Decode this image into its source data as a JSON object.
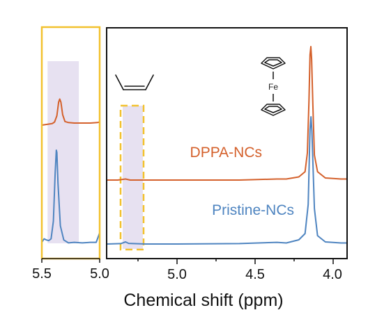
{
  "chart_data": [
    {
      "type": "line",
      "panel": "inset-zoom",
      "xlim": [
        5.5,
        5.0
      ],
      "x_reversed": true,
      "x_ticks": [
        "5.5",
        "5.0"
      ],
      "highlight_band": [
        5.45,
        5.18
      ],
      "series": [
        {
          "name": "DPPA-NCs",
          "color": "#d4602b",
          "points": [
            [
              5.5,
              0.64
            ],
            [
              5.47,
              0.645
            ],
            [
              5.44,
              0.65
            ],
            [
              5.41,
              0.655
            ],
            [
              5.39,
              0.67
            ],
            [
              5.37,
              0.73
            ],
            [
              5.355,
              0.86
            ],
            [
              5.345,
              0.89
            ],
            [
              5.335,
              0.86
            ],
            [
              5.32,
              0.74
            ],
            [
              5.3,
              0.675
            ],
            [
              5.27,
              0.665
            ],
            [
              5.22,
              0.66
            ],
            [
              5.15,
              0.66
            ],
            [
              5.08,
              0.66
            ],
            [
              5.02,
              0.665
            ],
            [
              5.0,
              0.67
            ]
          ]
        },
        {
          "name": "Pristine-NCs",
          "color": "#4e84c0",
          "points": [
            [
              5.5,
              0.02
            ],
            [
              5.48,
              0.05
            ],
            [
              5.46,
              0.04
            ],
            [
              5.44,
              0.035
            ],
            [
              5.42,
              0.05
            ],
            [
              5.4,
              0.2
            ],
            [
              5.385,
              0.6
            ],
            [
              5.375,
              0.8
            ],
            [
              5.37,
              0.78
            ],
            [
              5.36,
              0.52
            ],
            [
              5.34,
              0.16
            ],
            [
              5.31,
              0.04
            ],
            [
              5.27,
              0.015
            ],
            [
              5.22,
              0.02
            ],
            [
              5.15,
              0.015
            ],
            [
              5.08,
              0.02
            ],
            [
              5.03,
              0.02
            ],
            [
              5.0,
              0.1
            ]
          ]
        }
      ]
    },
    {
      "type": "line",
      "panel": "main",
      "xlabel": "Chemical shift (ppm)",
      "xlim": [
        5.45,
        3.9
      ],
      "x_reversed": true,
      "x_ticks": [
        "5.0",
        "4.5",
        "4.0"
      ],
      "highlight_band": [
        5.38,
        5.25
      ],
      "series": [
        {
          "name": "DPPA-NCs",
          "color": "#d4602b",
          "points": [
            [
              5.45,
              0.32
            ],
            [
              5.38,
              0.32
            ],
            [
              5.33,
              0.325
            ],
            [
              5.3,
              0.32
            ],
            [
              5.0,
              0.32
            ],
            [
              4.6,
              0.32
            ],
            [
              4.36,
              0.325
            ],
            [
              4.3,
              0.325
            ],
            [
              4.22,
              0.335
            ],
            [
              4.18,
              0.36
            ],
            [
              4.165,
              0.45
            ],
            [
              4.155,
              0.7
            ],
            [
              4.148,
              0.92
            ],
            [
              4.143,
              0.96
            ],
            [
              4.138,
              0.9
            ],
            [
              4.13,
              0.68
            ],
            [
              4.12,
              0.44
            ],
            [
              4.1,
              0.36
            ],
            [
              4.05,
              0.33
            ],
            [
              3.95,
              0.325
            ],
            [
              3.9,
              0.325
            ]
          ]
        },
        {
          "name": "Pristine-NCs",
          "color": "#4e84c0",
          "points": [
            [
              5.45,
              0.01
            ],
            [
              5.36,
              0.012
            ],
            [
              5.33,
              0.02
            ],
            [
              5.31,
              0.013
            ],
            [
              5.2,
              0.01
            ],
            [
              5.0,
              0.01
            ],
            [
              4.6,
              0.012
            ],
            [
              4.36,
              0.018
            ],
            [
              4.3,
              0.015
            ],
            [
              4.22,
              0.03
            ],
            [
              4.18,
              0.06
            ],
            [
              4.16,
              0.2
            ],
            [
              4.148,
              0.56
            ],
            [
              4.142,
              0.62
            ],
            [
              4.136,
              0.55
            ],
            [
              4.12,
              0.18
            ],
            [
              4.1,
              0.05
            ],
            [
              4.05,
              0.02
            ],
            [
              3.95,
              0.015
            ],
            [
              3.9,
              0.015
            ]
          ]
        }
      ]
    }
  ],
  "labels": {
    "dppa": "DPPA-NCs",
    "pristine": "Pristine-NCs",
    "xlabel": "Chemical shift (ppm)",
    "fe": "Fe"
  },
  "colors": {
    "dppa": "#d4602b",
    "pristine": "#4e84c0",
    "highlight": "#e7e1f1",
    "inset_frame": "#f2c12e",
    "dashed_box": "#f2c12e",
    "axis": "#111111"
  },
  "icons": {
    "alkene": "cis-alkene-structure-icon",
    "ferrocene": "ferrocene-structure-icon"
  }
}
